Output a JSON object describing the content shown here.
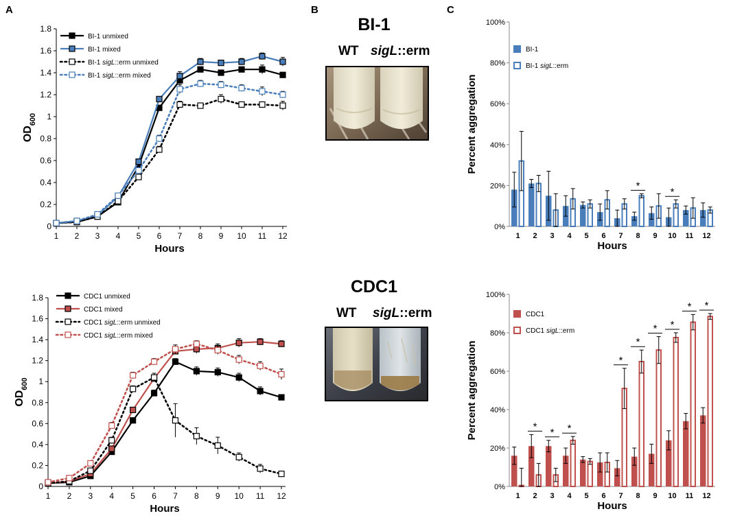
{
  "panels": {
    "a": "A",
    "b": "B",
    "c": "C"
  },
  "photos": {
    "top": {
      "title": "BI-1",
      "wt_label": "WT",
      "mutant_prefix": "sigL",
      "mutant_suffix": "::erm"
    },
    "bottom": {
      "title": "CDC1",
      "wt_label": "WT",
      "mutant_prefix": "sigL",
      "mutant_suffix": "::erm"
    }
  },
  "colors": {
    "black": "#000000",
    "blue": "#4a7ebb",
    "red": "#c0504d"
  },
  "chart_data": [
    {
      "id": "growth-bi1",
      "type": "line",
      "xlabel": "Hours",
      "ylabel": "OD600",
      "ylim": [
        0,
        1.8
      ],
      "yticks": [
        "0",
        "0.2",
        "0.4",
        "0.6",
        "0.8",
        "1",
        "1.2",
        "1.4",
        "1.6",
        "1.8"
      ],
      "x": [
        1,
        2,
        3,
        4,
        5,
        6,
        7,
        8,
        9,
        10,
        11,
        12
      ],
      "series": [
        {
          "name": "BI-1 unmixed",
          "color": "#000000",
          "dashed": false,
          "filled": true,
          "values": [
            0.03,
            0.04,
            0.09,
            0.22,
            0.55,
            1.08,
            1.33,
            1.43,
            1.4,
            1.43,
            1.43,
            1.38
          ],
          "err": [
            0.01,
            0.01,
            0.01,
            0.02,
            0.02,
            0.02,
            0.05,
            0.02,
            0.02,
            0.02,
            0.04,
            0.02
          ]
        },
        {
          "name": "BI-1 mixed",
          "color": "#4a7ebb",
          "dashed": false,
          "filled": true,
          "values": [
            0.03,
            0.05,
            0.1,
            0.27,
            0.59,
            1.16,
            1.37,
            1.5,
            1.49,
            1.5,
            1.55,
            1.5
          ],
          "err": [
            0.01,
            0.01,
            0.01,
            0.02,
            0.02,
            0.02,
            0.04,
            0.03,
            0.02,
            0.03,
            0.03,
            0.04
          ]
        },
        {
          "name": "BI-1 sigL::erm unmixed",
          "color": "#000000",
          "dashed": true,
          "filled": false,
          "values": [
            0.03,
            0.04,
            0.09,
            0.23,
            0.45,
            0.7,
            1.11,
            1.1,
            1.16,
            1.11,
            1.11,
            1.1
          ],
          "err": [
            0.01,
            0.01,
            0.01,
            0.02,
            0.02,
            0.03,
            0.03,
            0.02,
            0.04,
            0.02,
            0.02,
            0.04
          ]
        },
        {
          "name": "BI-1 sigL::erm mixed",
          "color": "#4a7ebb",
          "dashed": true,
          "filled": false,
          "values": [
            0.03,
            0.05,
            0.11,
            0.28,
            0.51,
            0.8,
            1.25,
            1.3,
            1.29,
            1.26,
            1.23,
            1.2
          ],
          "err": [
            0.01,
            0.01,
            0.01,
            0.02,
            0.02,
            0.03,
            0.04,
            0.03,
            0.03,
            0.03,
            0.04,
            0.03
          ]
        }
      ]
    },
    {
      "id": "growth-cdc1",
      "type": "line",
      "xlabel": "Hours",
      "ylabel": "OD600",
      "ylim": [
        0,
        1.8
      ],
      "yticks": [
        "0",
        "0.2",
        "0.4",
        "0.6",
        "0.8",
        "1",
        "1.2",
        "1.4",
        "1.6",
        "1.8"
      ],
      "x": [
        1,
        2,
        3,
        4,
        5,
        6,
        7,
        8,
        9,
        10,
        11,
        12
      ],
      "series": [
        {
          "name": "CDC1 unmixed",
          "color": "#000000",
          "dashed": false,
          "filled": true,
          "values": [
            0.03,
            0.04,
            0.1,
            0.33,
            0.63,
            0.89,
            1.19,
            1.1,
            1.09,
            1.04,
            0.91,
            0.85
          ],
          "err": [
            0.01,
            0.01,
            0.02,
            0.02,
            0.02,
            0.03,
            0.03,
            0.04,
            0.04,
            0.04,
            0.04,
            0.02
          ]
        },
        {
          "name": "CDC1 mixed",
          "color": "#c0504d",
          "dashed": false,
          "filled": true,
          "values": [
            0.03,
            0.05,
            0.12,
            0.36,
            0.73,
            1.03,
            1.29,
            1.31,
            1.32,
            1.37,
            1.38,
            1.36
          ],
          "err": [
            0.01,
            0.01,
            0.02,
            0.02,
            0.02,
            0.03,
            0.03,
            0.04,
            0.04,
            0.04,
            0.03,
            0.03
          ]
        },
        {
          "name": "CDC1 sigL::erm unmixed",
          "color": "#000000",
          "dashed": true,
          "filled": false,
          "values": [
            0.03,
            0.05,
            0.15,
            0.44,
            0.93,
            1.04,
            0.63,
            0.48,
            0.39,
            0.28,
            0.17,
            0.12
          ],
          "err": [
            0.01,
            0.01,
            0.02,
            0.03,
            0.03,
            0.04,
            0.16,
            0.08,
            0.08,
            0.04,
            0.04,
            0.02
          ]
        },
        {
          "name": "CDC1 sigL::erm mixed",
          "color": "#c0504d",
          "dashed": true,
          "filled": false,
          "values": [
            0.04,
            0.08,
            0.22,
            0.58,
            1.06,
            1.19,
            1.31,
            1.36,
            1.3,
            1.21,
            1.15,
            1.07
          ],
          "err": [
            0.01,
            0.01,
            0.02,
            0.03,
            0.03,
            0.03,
            0.04,
            0.03,
            0.04,
            0.04,
            0.04,
            0.05
          ]
        }
      ]
    },
    {
      "id": "aggregation-bi1",
      "type": "bar",
      "xlabel": "Hours",
      "ylabel": "Percent aggregation",
      "ylim": [
        0,
        100
      ],
      "yticks": [
        "0%",
        "20%",
        "40%",
        "60%",
        "80%",
        "100%"
      ],
      "categories": [
        "1",
        "2",
        "3",
        "4",
        "5",
        "6",
        "7",
        "8",
        "9",
        "10",
        "11",
        "12"
      ],
      "series": [
        {
          "name": "BI-1",
          "color": "#4a7ebb",
          "filled": true,
          "values": [
            18,
            21,
            15,
            10,
            10.5,
            7,
            4,
            5,
            6.5,
            4.5,
            8,
            8
          ],
          "err": [
            8.5,
            2,
            12,
            5,
            1.5,
            4,
            4,
            2,
            3,
            4.5,
            2,
            3.5
          ]
        },
        {
          "name": "BI-1 sigL::erm",
          "color": "#4a7ebb",
          "filled": false,
          "values": [
            32,
            21,
            8,
            13.5,
            11,
            13,
            11,
            15,
            10,
            11,
            9,
            8
          ],
          "err": [
            14.5,
            4,
            8,
            5,
            2,
            4.5,
            2.5,
            1,
            6,
            2,
            5,
            1.5
          ]
        }
      ],
      "significance": [
        {
          "category": "8",
          "label": "*"
        },
        {
          "category": "10",
          "label": "*"
        }
      ]
    },
    {
      "id": "aggregation-cdc1",
      "type": "bar",
      "xlabel": "Hours",
      "ylabel": "Percent aggregation",
      "ylim": [
        0,
        100
      ],
      "yticks": [
        "0%",
        "20%",
        "40%",
        "60%",
        "80%",
        "100%"
      ],
      "categories": [
        "1",
        "2",
        "3",
        "4",
        "5",
        "6",
        "7",
        "8",
        "9",
        "10",
        "11",
        "12"
      ],
      "series": [
        {
          "name": "CDC1",
          "color": "#c0504d",
          "filled": true,
          "values": [
            16,
            21,
            21,
            16,
            14,
            12.5,
            9.5,
            15.5,
            17,
            24,
            34,
            37
          ],
          "err": [
            4.5,
            6,
            3,
            4,
            1.5,
            5,
            4,
            4.5,
            5,
            5,
            4,
            4
          ]
        },
        {
          "name": "CDC1 sigL::erm",
          "color": "#c0504d",
          "filled": false,
          "values": [
            0.5,
            6,
            6,
            24,
            13,
            12.5,
            51,
            65,
            71,
            77.5,
            85.5,
            88.5
          ],
          "err": [
            9,
            6,
            3.5,
            2,
            1.5,
            5,
            10.5,
            6,
            7,
            2.5,
            4,
            1.5
          ]
        }
      ],
      "significance": [
        {
          "category": "2",
          "label": "*"
        },
        {
          "category": "3",
          "label": "*"
        },
        {
          "category": "4",
          "label": "*"
        },
        {
          "category": "7",
          "label": "*"
        },
        {
          "category": "8",
          "label": "*"
        },
        {
          "category": "9",
          "label": "*"
        },
        {
          "category": "10",
          "label": "*"
        },
        {
          "category": "11",
          "label": "*"
        },
        {
          "category": "12",
          "label": "*"
        }
      ]
    }
  ]
}
